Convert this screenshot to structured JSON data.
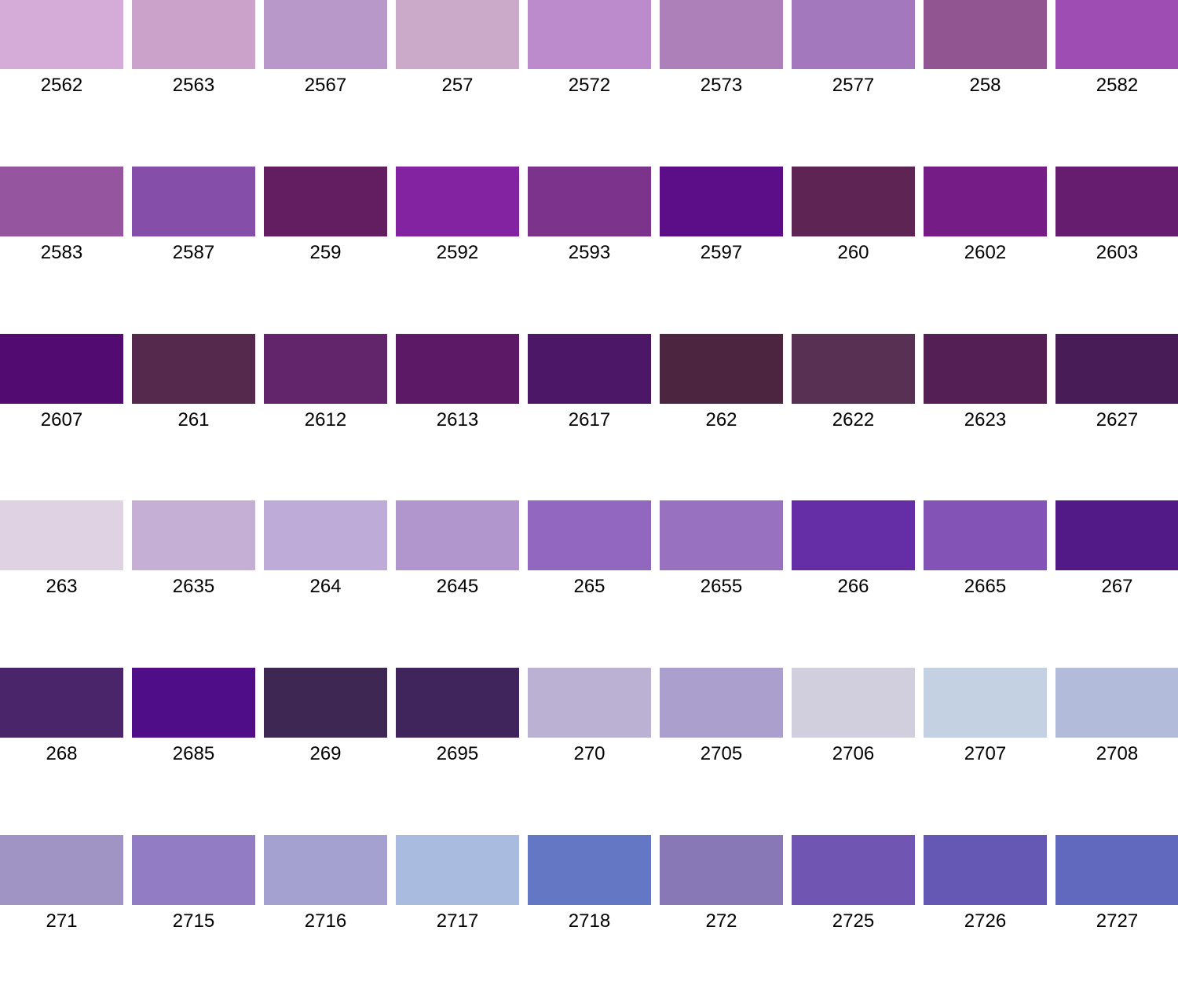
{
  "swatch_rows": [
    [
      {
        "code": "2562",
        "color": "#d4acd7"
      },
      {
        "code": "2563",
        "color": "#cba2c9"
      },
      {
        "code": "2567",
        "color": "#b897c9"
      },
      {
        "code": "257",
        "color": "#cba9c9"
      },
      {
        "code": "2572",
        "color": "#bc8bcc"
      },
      {
        "code": "2573",
        "color": "#ae80b9"
      },
      {
        "code": "2577",
        "color": "#a478bd"
      },
      {
        "code": "258",
        "color": "#915692"
      },
      {
        "code": "2582",
        "color": "#9e4db3"
      }
    ],
    [
      {
        "code": "2583",
        "color": "#95559f"
      },
      {
        "code": "2587",
        "color": "#854ea8"
      },
      {
        "code": "259",
        "color": "#631e61"
      },
      {
        "code": "2592",
        "color": "#8423a2"
      },
      {
        "code": "2593",
        "color": "#7c338c"
      },
      {
        "code": "2597",
        "color": "#5b0e87"
      },
      {
        "code": "260",
        "color": "#5d2454"
      },
      {
        "code": "2602",
        "color": "#761c87"
      },
      {
        "code": "2603",
        "color": "#661d6f"
      }
    ],
    [
      {
        "code": "2607",
        "color": "#520c71"
      },
      {
        "code": "261",
        "color": "#55284d"
      },
      {
        "code": "2612",
        "color": "#62256b"
      },
      {
        "code": "2613",
        "color": "#5c1966"
      },
      {
        "code": "2617",
        "color": "#4c1766"
      },
      {
        "code": "262",
        "color": "#4c2641"
      },
      {
        "code": "2622",
        "color": "#573053"
      },
      {
        "code": "2623",
        "color": "#541f54"
      },
      {
        "code": "2627",
        "color": "#481c57"
      }
    ],
    [
      {
        "code": "263",
        "color": "#dfd2e2"
      },
      {
        "code": "2635",
        "color": "#c6afd4"
      },
      {
        "code": "264",
        "color": "#bfabd8"
      },
      {
        "code": "2645",
        "color": "#b096cd"
      },
      {
        "code": "265",
        "color": "#9167bf"
      },
      {
        "code": "2655",
        "color": "#9871c0"
      },
      {
        "code": "266",
        "color": "#662ea6"
      },
      {
        "code": "2665",
        "color": "#8354b6"
      },
      {
        "code": "267",
        "color": "#511a87"
      }
    ],
    [
      {
        "code": "268",
        "color": "#4b2569"
      },
      {
        "code": "2685",
        "color": "#4f0e88"
      },
      {
        "code": "269",
        "color": "#3f2754"
      },
      {
        "code": "2695",
        "color": "#40255c"
      },
      {
        "code": "270",
        "color": "#bab1d3"
      },
      {
        "code": "2705",
        "color": "#aba0cd"
      },
      {
        "code": "2706",
        "color": "#d1cfde"
      },
      {
        "code": "2707",
        "color": "#c4d1e3"
      },
      {
        "code": "2708",
        "color": "#b2bbd9"
      }
    ],
    [
      {
        "code": "271",
        "color": "#9f94c4"
      },
      {
        "code": "2715",
        "color": "#927dc5"
      },
      {
        "code": "2716",
        "color": "#a4a1d1"
      },
      {
        "code": "2717",
        "color": "#a9bbde"
      },
      {
        "code": "2718",
        "color": "#6477c4"
      },
      {
        "code": "272",
        "color": "#8879b6"
      },
      {
        "code": "2725",
        "color": "#7055b3"
      },
      {
        "code": "2726",
        "color": "#6458b4"
      },
      {
        "code": "2727",
        "color": "#6169bf"
      }
    ]
  ]
}
